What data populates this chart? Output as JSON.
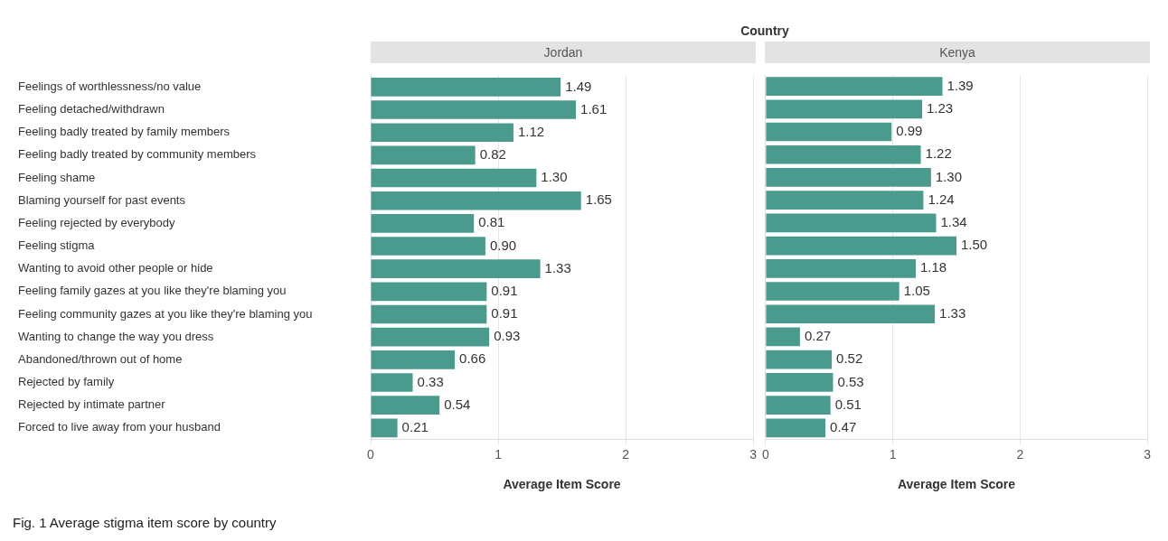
{
  "chart_data": [
    {
      "type": "bar",
      "orientation": "horizontal",
      "title": "Jordan",
      "xlabel": "Average Item Score",
      "annotations": [
        "Country",
        "Fig. 1 Average stigma item score by country"
      ],
      "categories": [
        "Feelings of worthlessness/no value",
        "Feeling detached/withdrawn",
        "Feeling badly treated by family members",
        "Feeling badly treated by community members",
        "Feeling shame",
        "Blaming yourself for past events",
        "Feeling rejected by everybody",
        "Feeling stigma",
        "Wanting to avoid other people or hide",
        "Feeling family gazes at you like they're blaming you",
        "Feeling community gazes at you like they're blaming you",
        "Wanting to change the way you dress",
        "Abandoned/thrown out of home",
        "Rejected by family",
        "Rejected by intimate partner",
        "Forced to live away from your husband"
      ],
      "values": [
        1.49,
        1.61,
        1.12,
        0.82,
        1.3,
        1.65,
        0.81,
        0.9,
        1.33,
        0.91,
        0.91,
        0.93,
        0.66,
        0.33,
        0.54,
        0.21
      ],
      "value_labels": [
        "1.49",
        "1.61",
        "1.12",
        "0.82",
        "1.30",
        "1.65",
        "0.81",
        "0.90",
        "1.33",
        "0.91",
        "0.91",
        "0.93",
        "0.66",
        "0.33",
        "0.54",
        "0.21"
      ],
      "color": "#4a9a8e",
      "xlim": [
        0,
        3
      ],
      "xticks": [
        0,
        1,
        2,
        3
      ],
      "grid": "x"
    },
    {
      "type": "bar",
      "orientation": "horizontal",
      "title": "Kenya",
      "xlabel": "Average Item Score",
      "categories": [
        null,
        null,
        null,
        null,
        null,
        null,
        null,
        null,
        null,
        null,
        null,
        null,
        null,
        null,
        null,
        null
      ],
      "values": [
        1.39,
        1.23,
        0.99,
        1.22,
        1.3,
        1.24,
        1.34,
        1.5,
        1.18,
        1.05,
        1.33,
        0.27,
        0.52,
        0.53,
        0.51,
        0.47
      ],
      "value_labels": [
        "1.39",
        "1.23",
        "0.99",
        "1.22",
        "1.30",
        "1.24",
        "1.34",
        "1.50",
        "1.18",
        "1.05",
        "1.33",
        "0.27",
        "0.52",
        "0.53",
        "0.51",
        "0.47"
      ],
      "color": "#4a9a8e",
      "xlim": [
        0,
        3
      ],
      "xticks": [
        0,
        1,
        2,
        3
      ],
      "grid": "x",
      "tick_labels": "x"
    }
  ]
}
